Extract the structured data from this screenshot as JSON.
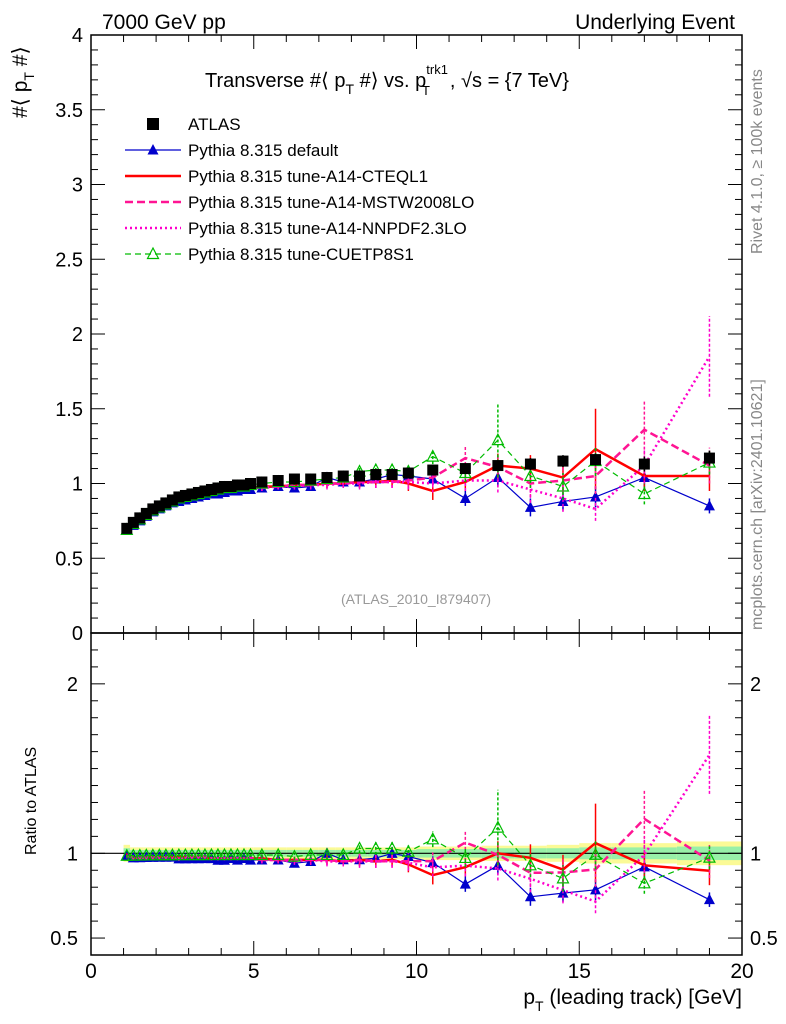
{
  "header": {
    "left": "7000 GeV pp",
    "right": "Underlying Event"
  },
  "side_labels": {
    "rivet": "Rivet 4.1.0, ≥ 100k events",
    "mcplots": "mcplots.cern.ch [arXiv:2401.10621]"
  },
  "chart_data": {
    "type": "line",
    "title": "Transverse #⟨ p_T #⟩ vs. p_T^trk1, √s = {7 TeV}",
    "title_parts": {
      "main": "Transverse #⟨ p",
      "sub1": "T",
      "mid": " #⟩ vs. p",
      "sup": "trk1",
      "sub2": "T",
      "tail": ", √s = {7 TeV}"
    },
    "watermark": "(ATLAS_2010_I879407)",
    "ylabel_main": "#⟨ p_T #⟩",
    "ylabel_main_parts": {
      "a": "#⟨ p",
      "sub": "T",
      "b": " #⟩"
    },
    "ylabel_ratio": "Ratio to ATLAS",
    "xlabel": "p_T (leading track) [GeV]",
    "xlabel_parts": {
      "a": "p",
      "sub": "T",
      "b": " (leading track) [GeV]"
    },
    "xlim": [
      0,
      20
    ],
    "ylim_main": [
      0,
      4
    ],
    "ylim_ratio": [
      0.4,
      2.3
    ],
    "x_ticks": [
      "0",
      "5",
      "10",
      "15",
      "20"
    ],
    "y_ticks_main": [
      "0",
      "0.5",
      "1",
      "1.5",
      "2",
      "2.5",
      "3",
      "3.5",
      "4"
    ],
    "y_ticks_ratio": [
      "0.5",
      "1",
      "2"
    ],
    "legend": [
      "ATLAS",
      "Pythia 8.315 default",
      "Pythia 8.315 tune-A14-CTEQL1",
      "Pythia 8.315 tune-A14-MSTW2008LO",
      "Pythia 8.315 tune-A14-NNPDF2.3LO",
      "Pythia 8.315 tune-CUETP8S1"
    ],
    "x": [
      1.1,
      1.3,
      1.5,
      1.7,
      1.9,
      2.1,
      2.3,
      2.5,
      2.7,
      2.9,
      3.1,
      3.3,
      3.5,
      3.7,
      3.9,
      4.1,
      4.3,
      4.5,
      4.7,
      4.9,
      5.25,
      5.75,
      6.25,
      6.75,
      7.25,
      7.75,
      8.25,
      8.75,
      9.25,
      9.75,
      10.5,
      11.5,
      12.5,
      13.5,
      14.5,
      15.5,
      17.0,
      19.0
    ],
    "series": [
      {
        "name": "ATLAS",
        "color": "#000000",
        "values": [
          0.7,
          0.74,
          0.77,
          0.8,
          0.83,
          0.85,
          0.87,
          0.89,
          0.91,
          0.92,
          0.93,
          0.94,
          0.95,
          0.96,
          0.97,
          0.98,
          0.98,
          0.99,
          0.99,
          1.0,
          1.01,
          1.02,
          1.03,
          1.03,
          1.04,
          1.05,
          1.05,
          1.06,
          1.06,
          1.07,
          1.09,
          1.1,
          1.12,
          1.13,
          1.15,
          1.16,
          1.13,
          1.17
        ],
        "errors": [
          0.01,
          0.01,
          0.01,
          0.01,
          0.01,
          0.01,
          0.01,
          0.01,
          0.01,
          0.01,
          0.01,
          0.01,
          0.01,
          0.01,
          0.01,
          0.01,
          0.01,
          0.01,
          0.01,
          0.01,
          0.01,
          0.01,
          0.01,
          0.02,
          0.02,
          0.02,
          0.02,
          0.02,
          0.02,
          0.02,
          0.03,
          0.03,
          0.03,
          0.04,
          0.04,
          0.04,
          0.05,
          0.05
        ]
      },
      {
        "name": "Pythia 8.315 default",
        "color": "#0000cc",
        "values": [
          0.69,
          0.72,
          0.75,
          0.78,
          0.81,
          0.83,
          0.85,
          0.87,
          0.88,
          0.89,
          0.9,
          0.91,
          0.92,
          0.93,
          0.93,
          0.94,
          0.95,
          0.95,
          0.96,
          0.96,
          0.97,
          0.98,
          0.97,
          0.98,
          1.04,
          1.01,
          1.01,
          1.03,
          1.06,
          1.05,
          1.03,
          0.9,
          1.04,
          0.84,
          0.88,
          0.91,
          1.04,
          0.85
        ],
        "errors": [
          0.01,
          0.01,
          0.01,
          0.01,
          0.01,
          0.01,
          0.01,
          0.01,
          0.01,
          0.01,
          0.01,
          0.01,
          0.01,
          0.01,
          0.01,
          0.01,
          0.01,
          0.01,
          0.01,
          0.01,
          0.02,
          0.02,
          0.02,
          0.02,
          0.03,
          0.03,
          0.03,
          0.03,
          0.04,
          0.04,
          0.04,
          0.05,
          0.06,
          0.06,
          0.06,
          0.07,
          0.08,
          0.05
        ]
      },
      {
        "name": "Pythia 8.315 tune-A14-CTEQL1",
        "color": "#ff0000",
        "values": [
          0.69,
          0.72,
          0.75,
          0.78,
          0.81,
          0.83,
          0.85,
          0.87,
          0.89,
          0.9,
          0.91,
          0.92,
          0.93,
          0.93,
          0.94,
          0.95,
          0.95,
          0.96,
          0.96,
          0.97,
          0.98,
          0.98,
          0.99,
          0.99,
          1.0,
          1.0,
          1.01,
          1.01,
          1.02,
          1.0,
          0.95,
          1.01,
          1.12,
          1.1,
          1.04,
          1.23,
          1.05,
          1.05
        ],
        "errors": [
          0.01,
          0.01,
          0.01,
          0.01,
          0.01,
          0.01,
          0.01,
          0.01,
          0.01,
          0.01,
          0.01,
          0.01,
          0.01,
          0.01,
          0.01,
          0.01,
          0.01,
          0.01,
          0.01,
          0.01,
          0.02,
          0.02,
          0.02,
          0.02,
          0.03,
          0.03,
          0.04,
          0.04,
          0.04,
          0.05,
          0.06,
          0.06,
          0.08,
          0.09,
          0.1,
          0.27,
          0.1,
          0.1
        ]
      },
      {
        "name": "Pythia 8.315 tune-A14-MSTW2008LO",
        "color": "#ff1493",
        "values": [
          0.69,
          0.72,
          0.75,
          0.78,
          0.81,
          0.83,
          0.85,
          0.87,
          0.88,
          0.9,
          0.91,
          0.92,
          0.93,
          0.93,
          0.94,
          0.95,
          0.95,
          0.96,
          0.96,
          0.97,
          0.97,
          0.98,
          0.99,
          0.99,
          1.0,
          1.0,
          1.01,
          1.01,
          1.01,
          1.02,
          1.04,
          1.17,
          1.11,
          1.0,
          1.02,
          1.05,
          1.36,
          1.12
        ],
        "errors": [
          0.01,
          0.01,
          0.01,
          0.01,
          0.01,
          0.01,
          0.01,
          0.01,
          0.01,
          0.01,
          0.01,
          0.01,
          0.01,
          0.01,
          0.01,
          0.01,
          0.01,
          0.01,
          0.01,
          0.01,
          0.02,
          0.02,
          0.02,
          0.03,
          0.03,
          0.03,
          0.04,
          0.04,
          0.04,
          0.05,
          0.06,
          0.08,
          0.08,
          0.09,
          0.1,
          0.12,
          0.2,
          0.12
        ]
      },
      {
        "name": "Pythia 8.315 tune-A14-NNPDF2.3LO",
        "color": "#ff00cc",
        "values": [
          0.69,
          0.72,
          0.75,
          0.78,
          0.81,
          0.83,
          0.85,
          0.87,
          0.88,
          0.9,
          0.91,
          0.92,
          0.93,
          0.93,
          0.94,
          0.95,
          0.95,
          0.96,
          0.96,
          0.97,
          0.97,
          0.98,
          0.98,
          0.99,
          0.99,
          1.0,
          1.0,
          1.01,
          1.01,
          1.01,
          1.0,
          1.02,
          1.02,
          0.96,
          0.9,
          0.83,
          1.12,
          1.85
        ],
        "errors": [
          0.01,
          0.01,
          0.01,
          0.01,
          0.01,
          0.01,
          0.01,
          0.01,
          0.01,
          0.01,
          0.01,
          0.01,
          0.01,
          0.01,
          0.01,
          0.01,
          0.01,
          0.01,
          0.01,
          0.01,
          0.02,
          0.02,
          0.02,
          0.03,
          0.03,
          0.03,
          0.04,
          0.04,
          0.04,
          0.05,
          0.06,
          0.07,
          0.08,
          0.09,
          0.09,
          0.08,
          0.12,
          0.27
        ]
      },
      {
        "name": "Pythia 8.315 tune-CUETP8S1",
        "color": "#00bb00",
        "values": [
          0.69,
          0.73,
          0.76,
          0.79,
          0.82,
          0.84,
          0.86,
          0.88,
          0.9,
          0.91,
          0.92,
          0.93,
          0.94,
          0.95,
          0.96,
          0.97,
          0.97,
          0.98,
          0.98,
          0.99,
          1.0,
          1.01,
          1.01,
          1.02,
          1.03,
          1.04,
          1.08,
          1.09,
          1.09,
          1.08,
          1.18,
          1.07,
          1.29,
          1.05,
          0.98,
          1.15,
          0.93,
          1.14
        ],
        "errors": [
          0.01,
          0.01,
          0.01,
          0.01,
          0.01,
          0.01,
          0.01,
          0.01,
          0.01,
          0.01,
          0.01,
          0.01,
          0.01,
          0.01,
          0.01,
          0.01,
          0.01,
          0.01,
          0.01,
          0.01,
          0.02,
          0.02,
          0.02,
          0.02,
          0.03,
          0.03,
          0.03,
          0.04,
          0.04,
          0.04,
          0.05,
          0.06,
          0.25,
          0.08,
          0.09,
          0.1,
          0.07,
          0.08
        ]
      }
    ],
    "ratio_band_edges": [
      1.0,
      1.2,
      1.4,
      1.6,
      1.8,
      2.0,
      2.2,
      2.4,
      2.6,
      2.8,
      3.0,
      3.2,
      3.4,
      3.6,
      3.8,
      4.0,
      4.2,
      4.4,
      4.6,
      4.8,
      5.0,
      5.5,
      6.0,
      6.5,
      7.0,
      7.5,
      8.0,
      8.5,
      9.0,
      9.5,
      10.0,
      11.0,
      12.0,
      13.0,
      14.0,
      15.0,
      16.0,
      18.0,
      20.0
    ],
    "ratio_band_stat": [
      0.03,
      0.02,
      0.02,
      0.02,
      0.02,
      0.02,
      0.02,
      0.02,
      0.02,
      0.02,
      0.02,
      0.02,
      0.02,
      0.02,
      0.02,
      0.02,
      0.02,
      0.02,
      0.02,
      0.02,
      0.02,
      0.02,
      0.02,
      0.02,
      0.02,
      0.02,
      0.02,
      0.02,
      0.02,
      0.02,
      0.025,
      0.025,
      0.03,
      0.03,
      0.03,
      0.035,
      0.035,
      0.04
    ],
    "ratio_band_total": [
      0.05,
      0.035,
      0.035,
      0.035,
      0.035,
      0.035,
      0.035,
      0.035,
      0.035,
      0.035,
      0.035,
      0.035,
      0.035,
      0.035,
      0.035,
      0.035,
      0.035,
      0.035,
      0.035,
      0.035,
      0.035,
      0.035,
      0.035,
      0.035,
      0.035,
      0.035,
      0.035,
      0.035,
      0.035,
      0.035,
      0.04,
      0.04,
      0.045,
      0.045,
      0.05,
      0.06,
      0.06,
      0.07
    ]
  }
}
